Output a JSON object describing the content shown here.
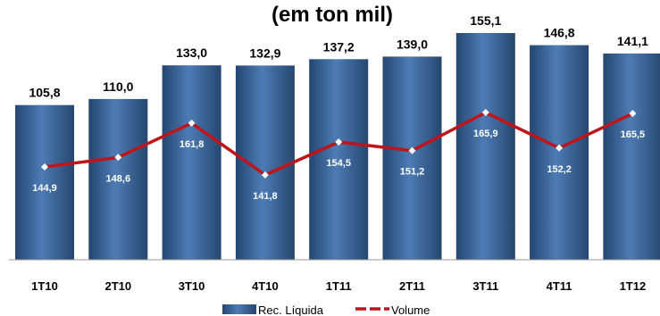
{
  "chart_data": {
    "type": "bar",
    "title": "(em ton mil)",
    "categories": [
      "1T10",
      "2T10",
      "3T10",
      "4T10",
      "1T11",
      "2T11",
      "3T11",
      "4T11",
      "1T12"
    ],
    "series": [
      {
        "name": "Rec. Líquida",
        "type": "bar",
        "values": [
          "105,8",
          "110,0",
          "133,0",
          "132,9",
          "137,2",
          "139,0",
          "155,1",
          "146,8",
          "141,1"
        ]
      },
      {
        "name": "Volume",
        "type": "line",
        "values": [
          "144,9",
          "148,6",
          "161,8",
          "141,8",
          "154,5",
          "151,2",
          "165,9",
          "152,2",
          "165,5"
        ]
      }
    ],
    "legend": {
      "position": "bottom"
    },
    "grid": false,
    "colors": {
      "bar": "#2e5182",
      "bar_light": "#4a78b0",
      "line": "#c0141b",
      "marker": "#ffffff"
    }
  }
}
